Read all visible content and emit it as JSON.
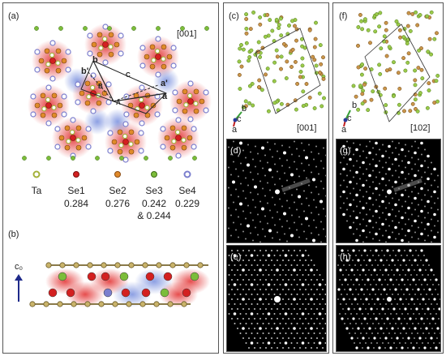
{
  "figure": {
    "panels": {
      "a": {
        "label": "(a)",
        "zone": "[001]"
      },
      "b": {
        "label": "(b)",
        "axis_label": "c₀"
      },
      "c": {
        "label": "(c)",
        "zone": "[001]",
        "axes": [
          "b",
          "c",
          "a"
        ]
      },
      "d": {
        "label": "(d)"
      },
      "e": {
        "label": "(e)"
      },
      "f": {
        "label": "(f)",
        "zone": "[102]",
        "axes": [
          "b",
          "c",
          "a"
        ]
      },
      "g": {
        "label": "(g)"
      },
      "h": {
        "label": "(h)"
      }
    },
    "lattice_labels": [
      "b",
      "b'",
      "a",
      "a'",
      "A",
      "B",
      "C"
    ],
    "legend": [
      {
        "name": "Ta",
        "value": "",
        "value2": "",
        "color": "#a4b13a"
      },
      {
        "name": "Se1",
        "value": "0.284",
        "value2": "",
        "color": "#d32020"
      },
      {
        "name": "Se2",
        "value": "0.276",
        "value2": "",
        "color": "#e08a2a"
      },
      {
        "name": "Se3",
        "value": "0.242",
        "value2": "& 0.244",
        "color": "#7cbd3a"
      },
      {
        "name": "Se4",
        "value": "0.229",
        "value2": "",
        "color": "#7b7fce"
      }
    ]
  }
}
